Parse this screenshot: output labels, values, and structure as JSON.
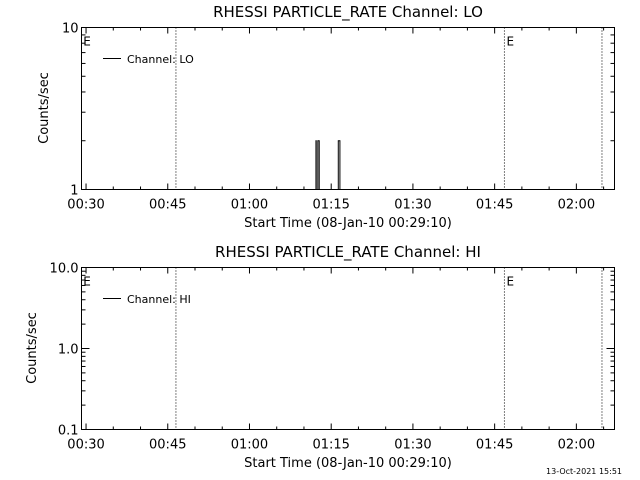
{
  "chart_data": [
    {
      "type": "line",
      "title": "RHESSI PARTICLE_RATE Channel: LO",
      "xlabel": "Start Time (08-Jan-10 00:29:10)",
      "ylabel": "Counts/sec",
      "yscale": "log",
      "ylim": [
        1,
        10
      ],
      "y_ticks": [
        1,
        10
      ],
      "y_tick_labels": [
        "1",
        "10"
      ],
      "xlim": [
        "00:29:10",
        "02:07:00"
      ],
      "x_tick_labels": [
        "00:30",
        "00:45",
        "01:00",
        "01:15",
        "01:30",
        "01:45",
        "02:00"
      ],
      "x_tick_minutes": [
        30,
        45,
        60,
        75,
        90,
        105,
        120
      ],
      "legend": {
        "position": "top-left",
        "entries": [
          "Channel: LO"
        ]
      },
      "event_lines_x_minutes": [
        46.5,
        106.8,
        124.7
      ],
      "event_markers": [
        {
          "label": "E",
          "x_minutes": 29.3
        },
        {
          "label": "E",
          "x_minutes": 107.0
        }
      ],
      "series": [
        {
          "name": "Channel: LO",
          "x_minutes": [
            72.0,
            72.2,
            72.25,
            72.45,
            72.55,
            72.7,
            72.8,
            73.0,
            76.1,
            76.3,
            76.4,
            76.6
          ],
          "values": [
            1,
            2,
            1,
            1,
            2,
            2,
            1,
            1,
            1,
            2,
            2,
            1
          ]
        }
      ]
    },
    {
      "type": "line",
      "title": "RHESSI PARTICLE_RATE Channel: HI",
      "xlabel": "Start Time (08-Jan-10 00:29:10)",
      "ylabel": "Counts/sec",
      "yscale": "log",
      "ylim": [
        0.1,
        10
      ],
      "y_ticks": [
        0.1,
        1,
        10
      ],
      "y_tick_labels": [
        "0.1",
        "1.0",
        "10.0"
      ],
      "xlim": [
        "00:29:10",
        "02:07:00"
      ],
      "x_tick_labels": [
        "00:30",
        "00:45",
        "01:00",
        "01:15",
        "01:30",
        "01:45",
        "02:00"
      ],
      "x_tick_minutes": [
        30,
        45,
        60,
        75,
        90,
        105,
        120
      ],
      "legend": {
        "position": "top-left",
        "entries": [
          "Channel: HI"
        ]
      },
      "event_lines_x_minutes": [
        46.5,
        106.8,
        124.7
      ],
      "event_markers": [
        {
          "label": "E",
          "x_minutes": 29.3
        },
        {
          "label": "E",
          "x_minutes": 107.0
        }
      ],
      "series": [
        {
          "name": "Channel: HI",
          "x_minutes": [],
          "values": []
        }
      ]
    }
  ],
  "footer": {
    "timestamp": "13-Oct-2021 15:51"
  },
  "colors": {
    "background": "#ffffff",
    "foreground": "#000000"
  }
}
